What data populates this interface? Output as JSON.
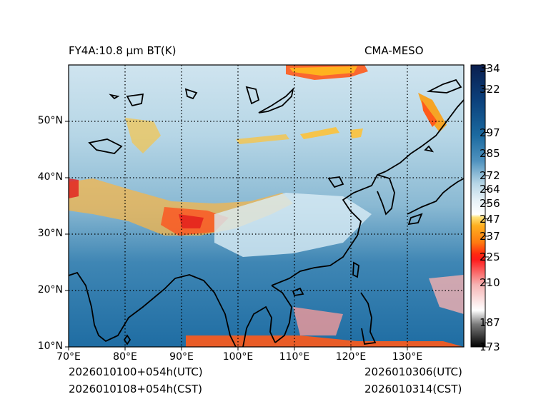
{
  "header": {
    "left_title": "FY4A:10.8 µm BT(K)",
    "right_title": "CMA-MESO"
  },
  "footer": {
    "init_utc": "2026010100+054h(UTC)",
    "init_cst": "2026010108+054h(CST)",
    "valid_utc": "2026010306(UTC)",
    "valid_cst": "2026010314(CST)"
  },
  "map": {
    "lon_ticks": [
      "70°E",
      "80°E",
      "90°E",
      "100°E",
      "110°E",
      "120°E",
      "130°E"
    ],
    "lat_ticks": [
      "10°N",
      "20°N",
      "30°N",
      "40°N",
      "50°N"
    ],
    "lon_range": [
      70,
      140
    ],
    "lat_range": [
      10,
      60
    ]
  },
  "colorbar": {
    "ticks": [
      "173",
      "187",
      "210",
      "225",
      "237",
      "247",
      "256",
      "264",
      "272",
      "285",
      "297",
      "322",
      "334"
    ],
    "range": [
      173,
      336
    ]
  }
}
